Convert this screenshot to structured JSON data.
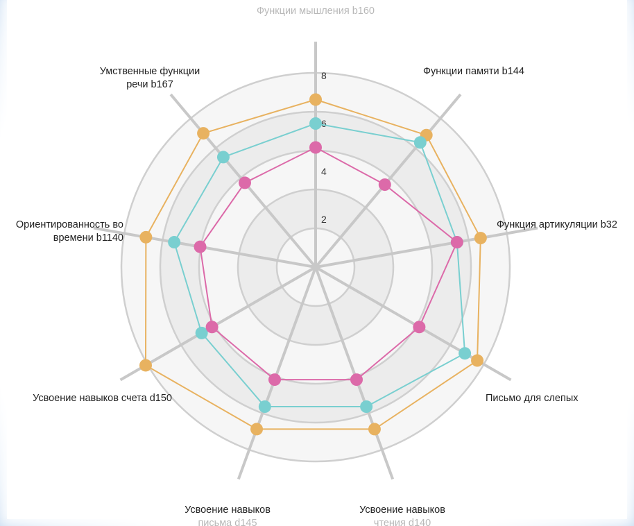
{
  "chart_data": {
    "type": "radar",
    "axes": [
      {
        "label": [
          "Функции мышления b160"
        ],
        "faded": true
      },
      {
        "label": [
          "Функции памяти b144"
        ]
      },
      {
        "label": [
          "Функция артикуляции b32"
        ]
      },
      {
        "label": [
          "Письмо для слепых"
        ]
      },
      {
        "label": [
          "Усвоение навыков",
          "чтения d140"
        ],
        "faded_second": true
      },
      {
        "label": [
          "Усвоение навыков",
          "письма d145"
        ],
        "faded_second": true
      },
      {
        "label": [
          "Усвоение навыков счета d150"
        ]
      },
      {
        "label": [
          "Ориентированность во",
          "времени b1140"
        ]
      },
      {
        "label": [
          "Умственные функции",
          "речи b167"
        ]
      }
    ],
    "radial_ticks": [
      "2",
      "4",
      "6",
      "8"
    ],
    "r_max": 10,
    "grid_rings": [
      2,
      4,
      6,
      8,
      10
    ],
    "series": [
      {
        "color": "#e8b260",
        "values": [
          7,
          7.2,
          7,
          7.8,
          7.2,
          7.2,
          8.2,
          7.2,
          7.3
        ]
      },
      {
        "color": "#79cfd0",
        "values": [
          6,
          6.8,
          6,
          7.2,
          6.2,
          6.2,
          5.5,
          6,
          6
        ]
      },
      {
        "color": "#dc6aa9",
        "values": [
          5,
          4.5,
          6,
          5,
          5,
          5,
          5,
          4.9,
          4.6
        ]
      }
    ]
  }
}
